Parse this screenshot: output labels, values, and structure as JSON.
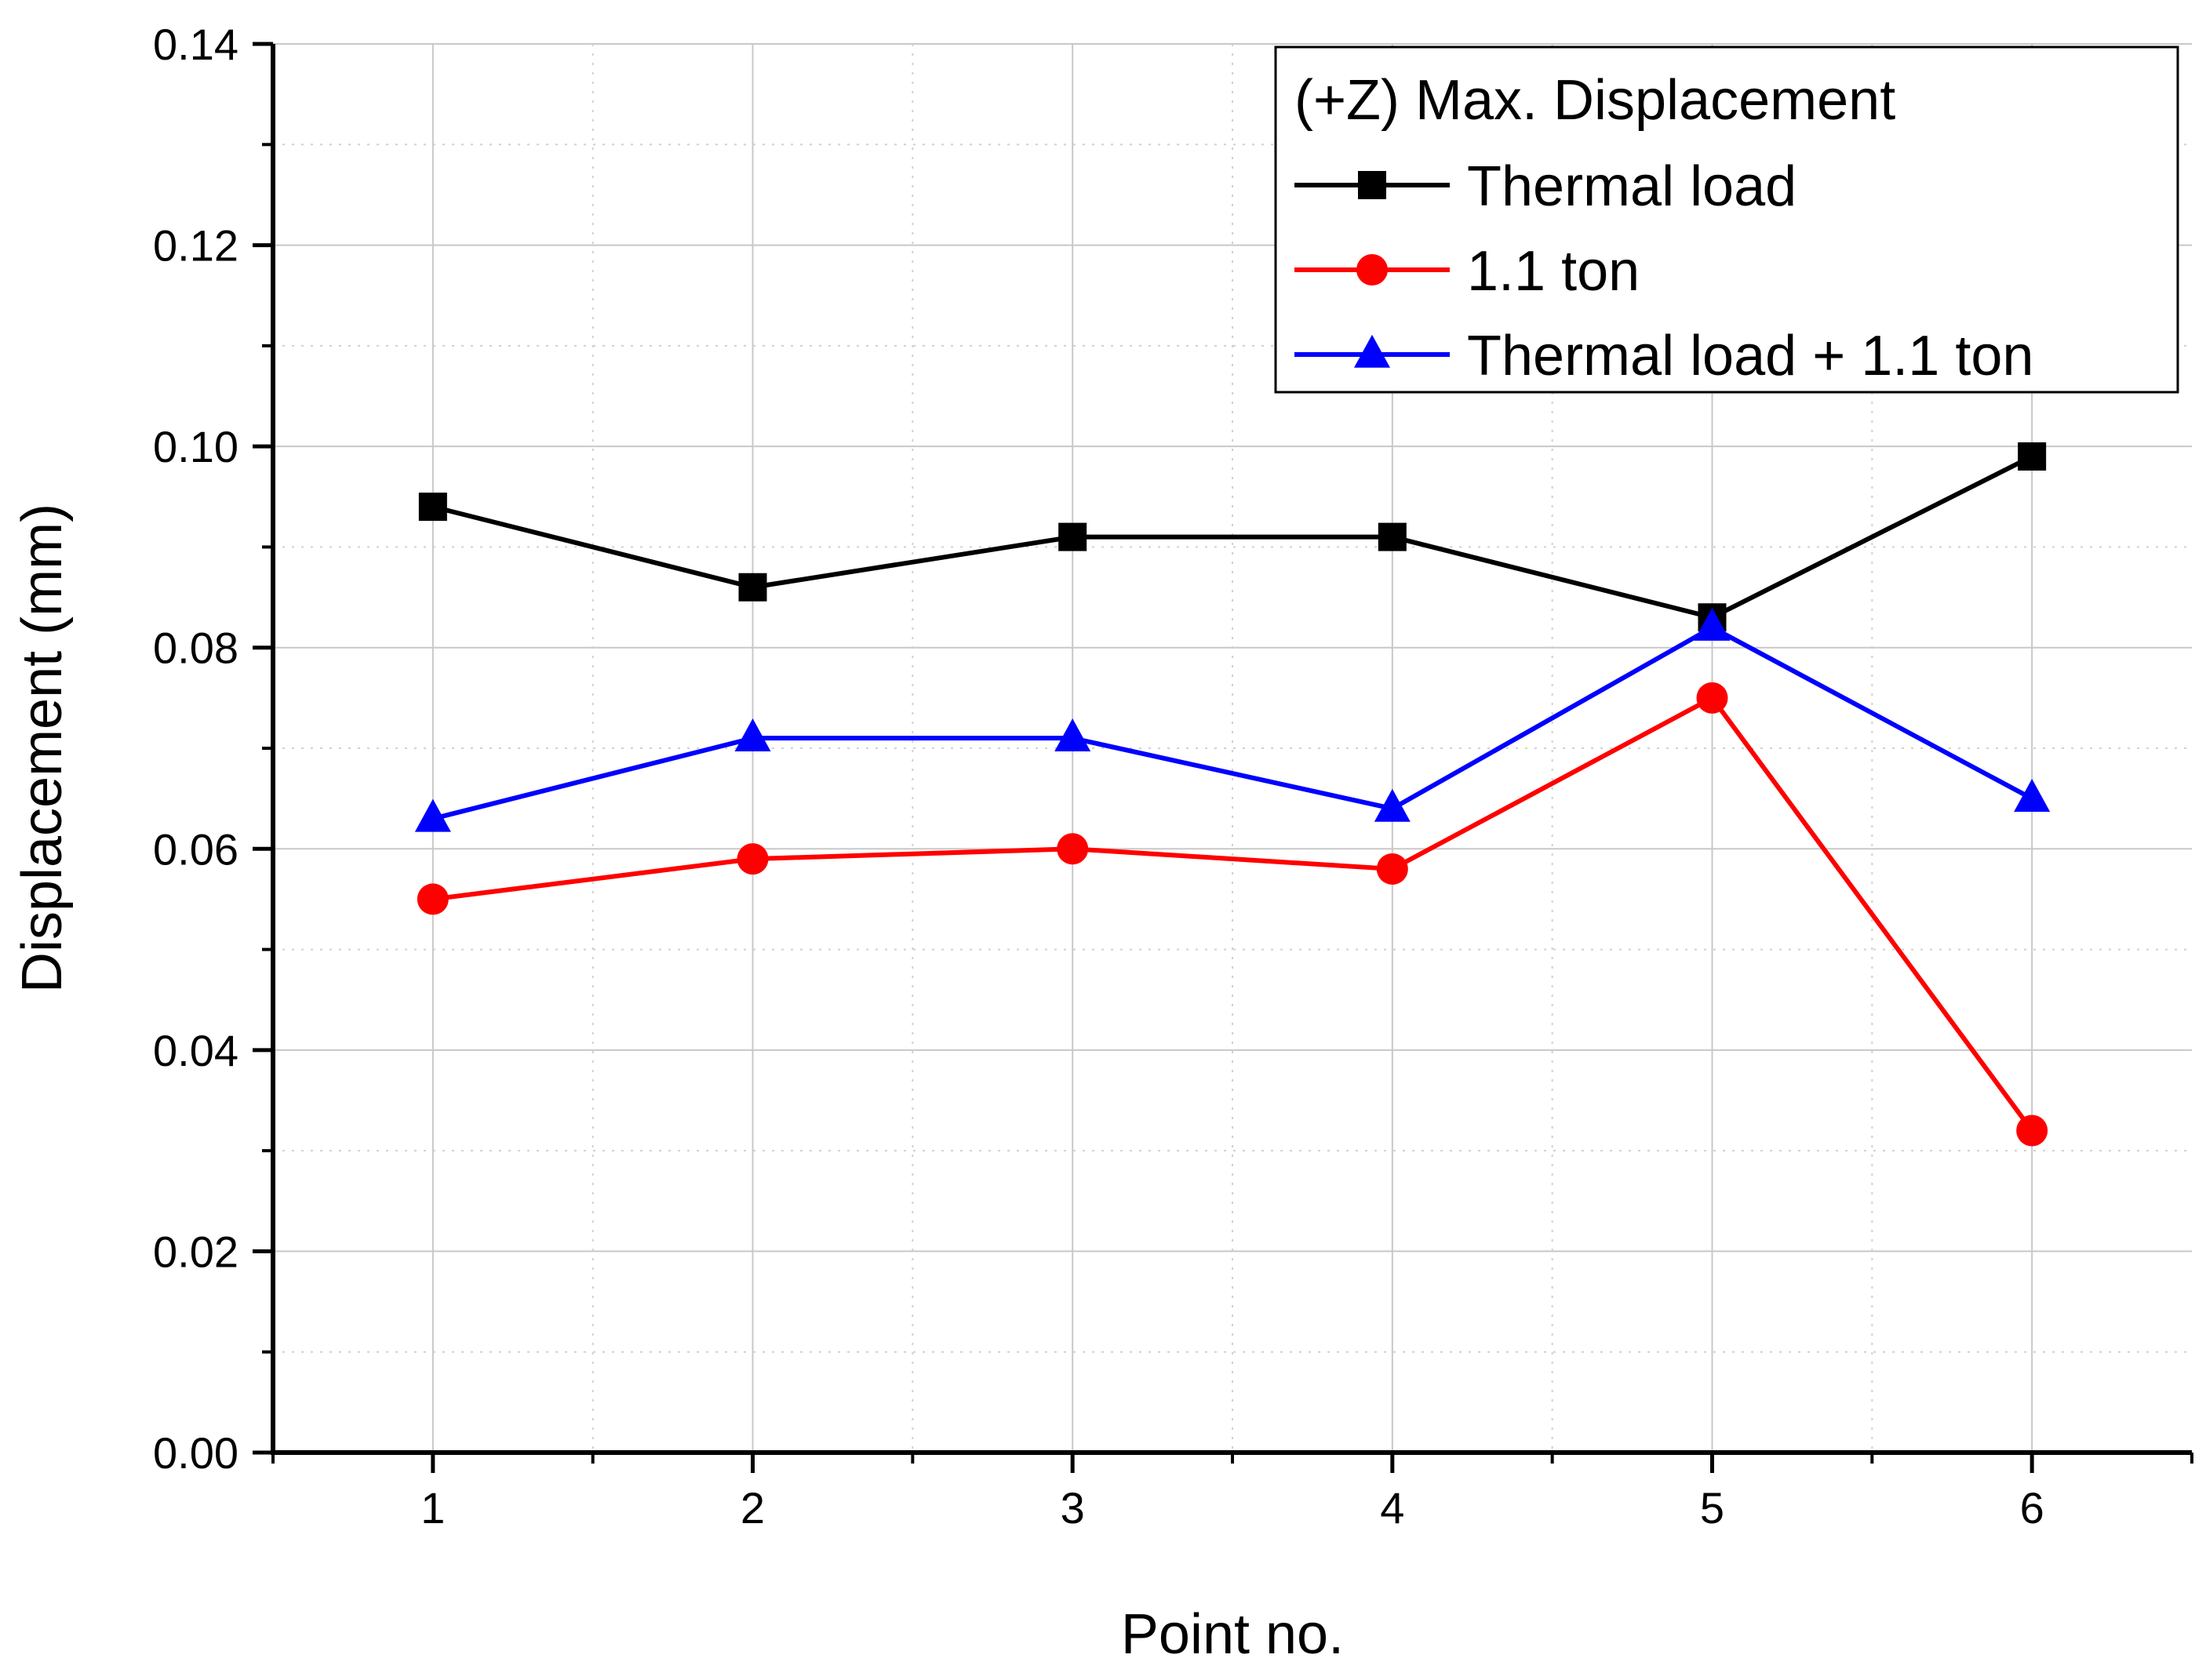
{
  "chart_data": {
    "type": "line",
    "title": "",
    "xlabel": "Point no.",
    "ylabel": "Displacement (mm)",
    "x": [
      1,
      2,
      3,
      4,
      5,
      6
    ],
    "xlim": [
      0.5,
      6.5
    ],
    "ylim": [
      0,
      0.14
    ],
    "x_ticks": [
      "1",
      "2",
      "3",
      "4",
      "5",
      "6"
    ],
    "y_ticks": [
      "0.00",
      "0.02",
      "0.04",
      "0.06",
      "0.08",
      "0.10",
      "0.12",
      "0.14"
    ],
    "grid": true,
    "legend": {
      "title": "(+Z) Max. Displacement",
      "position": "top-right"
    },
    "series": [
      {
        "name": "Thermal load",
        "marker": "square",
        "color": "#000000",
        "values": [
          0.094,
          0.086,
          0.091,
          0.091,
          0.083,
          0.099
        ]
      },
      {
        "name": "1.1 ton",
        "marker": "circle",
        "color": "#ff0000",
        "values": [
          0.055,
          0.059,
          0.06,
          0.058,
          0.075,
          0.032
        ]
      },
      {
        "name": "Thermal load + 1.1 ton",
        "marker": "triangle",
        "color": "#0000ff",
        "values": [
          0.063,
          0.071,
          0.071,
          0.064,
          0.082,
          0.065
        ]
      }
    ]
  }
}
